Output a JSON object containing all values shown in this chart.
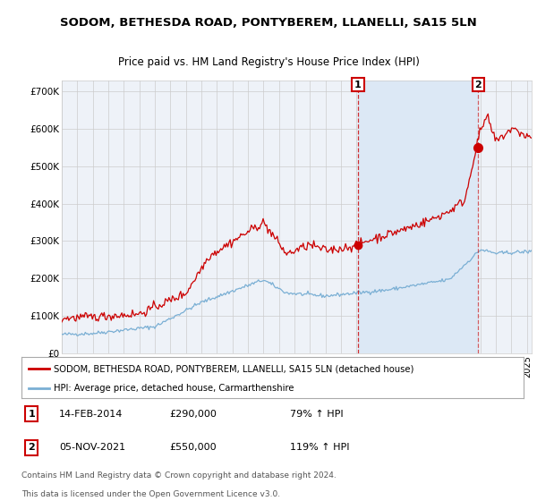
{
  "title": "SODOM, BETHESDA ROAD, PONTYBEREM, LLANELLI, SA15 5LN",
  "subtitle": "Price paid vs. HM Land Registry's House Price Index (HPI)",
  "title_fontsize": 9.5,
  "subtitle_fontsize": 8.5,
  "red_color": "#cc0000",
  "blue_color": "#7aafd4",
  "background_color": "#ffffff",
  "plot_bg_color": "#eef2f8",
  "grid_color": "#cccccc",
  "shade_color": "#dce8f5",
  "transaction1_date": 2014.1,
  "transaction1_value": 290000,
  "transaction2_date": 2021.85,
  "transaction2_value": 550000,
  "ylabel_ticks": [
    0,
    100000,
    200000,
    300000,
    400000,
    500000,
    600000,
    700000
  ],
  "ylabel_labels": [
    "£0",
    "£100K",
    "£200K",
    "£300K",
    "£400K",
    "£500K",
    "£600K",
    "£700K"
  ],
  "xlim_left": 1995.0,
  "xlim_right": 2025.3,
  "ylim": [
    0,
    730000
  ],
  "legend_line1": "SODOM, BETHESDA ROAD, PONTYBEREM, LLANELLI, SA15 5LN (detached house)",
  "legend_line2": "HPI: Average price, detached house, Carmarthenshire",
  "footnote1": "Contains HM Land Registry data © Crown copyright and database right 2024.",
  "footnote2": "This data is licensed under the Open Government Licence v3.0.",
  "annotation1_date": "14-FEB-2014",
  "annotation1_price": "£290,000",
  "annotation1_hpi": "79% ↑ HPI",
  "annotation2_date": "05-NOV-2021",
  "annotation2_price": "£550,000",
  "annotation2_hpi": "119% ↑ HPI"
}
